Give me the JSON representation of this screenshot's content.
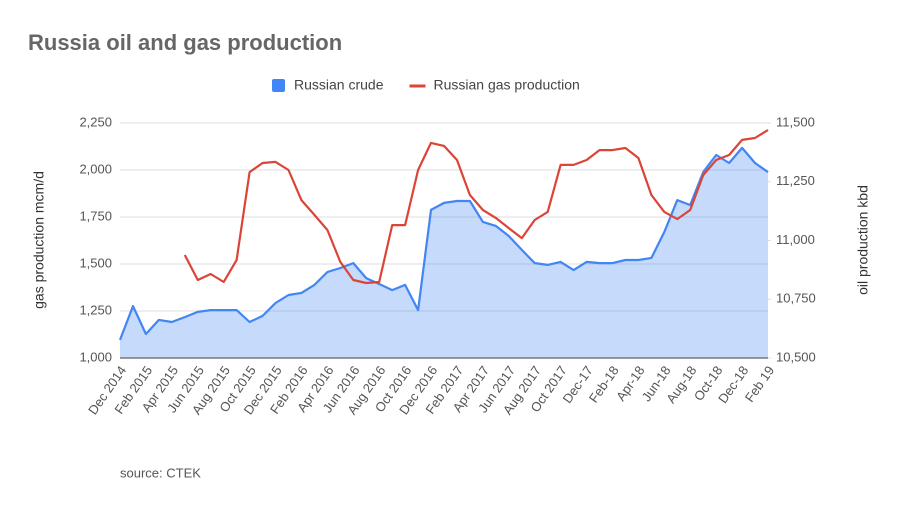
{
  "chart_data": {
    "type": "line",
    "title": "Russia oil and gas production",
    "source": "source: CTEK",
    "y_label": "gas production mcm/d",
    "y2_label": "oil production kbd",
    "categories": [
      "Dec 2014",
      null,
      "Feb 2015",
      null,
      "Apr 2015",
      null,
      "Jun 2015",
      null,
      "Aug 2015",
      null,
      "Oct 2015",
      null,
      "Dec 2015",
      null,
      "Feb 2016",
      null,
      "Apr 2016",
      null,
      "Jun 2016",
      null,
      "Aug 2016",
      null,
      "Oct 2016",
      null,
      "Dec 2016",
      null,
      "Feb 2017",
      null,
      "Apr 2017",
      null,
      "Jun 2017",
      null,
      "Aug 2017",
      null,
      "Oct 2017",
      null,
      "Dec-17",
      null,
      "Feb-18",
      null,
      "Apr-18",
      null,
      "Jun-18",
      null,
      "Aug-18",
      null,
      "Oct-18",
      null,
      "Dec-18",
      null,
      "Feb 19"
    ],
    "series": [
      {
        "name": "Russian crude",
        "color": "#4285f4",
        "axis": "y2",
        "area": true,
        "values": [
          10577,
          10721,
          10602,
          10662,
          10653,
          10674,
          10696,
          10704,
          10704,
          10704,
          10653,
          10679,
          10734,
          10768,
          10777,
          10811,
          10866,
          10883,
          10904,
          10840,
          10815,
          10789,
          10811,
          10704,
          11130,
          11160,
          11168,
          11168,
          11079,
          11062,
          11019,
          10960,
          10904,
          10896,
          10909,
          10874,
          10909,
          10904,
          10904,
          10917,
          10917,
          10926,
          11036,
          11172,
          11151,
          11291,
          11364,
          11330,
          11394,
          11330,
          11291
        ]
      },
      {
        "name": "Russian gas production",
        "color": "#db4437",
        "axis": "y",
        "values": [
          null,
          null,
          null,
          null,
          null,
          1548,
          1415,
          1447,
          1404,
          1521,
          1989,
          2037,
          2043,
          2000,
          1840,
          1761,
          1681,
          1511,
          1415,
          1399,
          1404,
          1707,
          1707,
          2000,
          2144,
          2128,
          2053,
          1867,
          1787,
          1745,
          1691,
          1638,
          1734,
          1777,
          2027,
          2027,
          2053,
          2106,
          2106,
          2117,
          2064,
          1867,
          1777,
          1739,
          1787,
          1973,
          2053,
          2080,
          2160,
          2170,
          2213
        ]
      }
    ],
    "ylim": [
      1000,
      2250
    ],
    "yticks": [
      {
        "value": 1000,
        "label": "1,000"
      },
      {
        "value": 1250,
        "label": "1,250"
      },
      {
        "value": 1500,
        "label": "1,500"
      },
      {
        "value": 1750,
        "label": "1,750"
      },
      {
        "value": 2000,
        "label": "2,000"
      },
      {
        "value": 2250,
        "label": "2,250"
      }
    ],
    "y2lim": [
      10500,
      11500
    ],
    "y2ticks": [
      {
        "value": 10500,
        "label": "10,500"
      },
      {
        "value": 10750,
        "label": "10,750"
      },
      {
        "value": 11000,
        "label": "11,000"
      },
      {
        "value": 11250,
        "label": "11,250"
      },
      {
        "value": 11500,
        "label": "11,500"
      }
    ],
    "grid": true,
    "legend": "top"
  }
}
